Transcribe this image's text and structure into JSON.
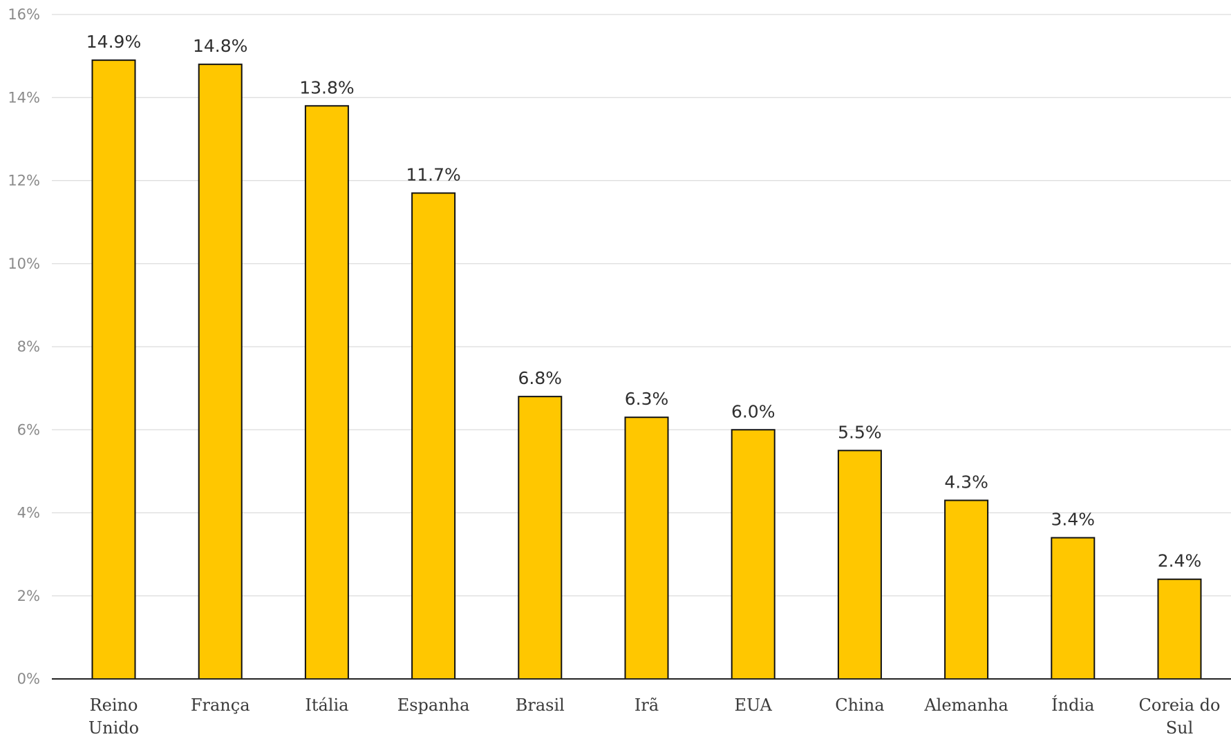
{
  "chart_data": {
    "type": "bar",
    "categories": [
      [
        "Reino",
        "Unido"
      ],
      [
        "França"
      ],
      [
        "Itália"
      ],
      [
        "Espanha"
      ],
      [
        "Brasil"
      ],
      [
        "Irã"
      ],
      [
        "EUA"
      ],
      [
        "China"
      ],
      [
        "Alemanha"
      ],
      [
        "Índia"
      ],
      [
        "Coreia do",
        "Sul"
      ]
    ],
    "values": [
      14.9,
      14.8,
      13.8,
      11.7,
      6.8,
      6.3,
      6.0,
      5.5,
      4.3,
      3.4,
      2.4
    ],
    "data_labels": [
      "14.9%",
      "14.8%",
      "13.8%",
      "11.7%",
      "6.8%",
      "6.3%",
      "6.0%",
      "5.5%",
      "4.3%",
      "3.4%",
      "2.4%"
    ],
    "yticks": [
      0,
      2,
      4,
      6,
      8,
      10,
      12,
      14,
      16
    ],
    "ytick_labels": [
      "0%",
      "2%",
      "4%",
      "6%",
      "8%",
      "10%",
      "12%",
      "14%",
      "16%"
    ],
    "ylim": [
      0,
      16
    ],
    "grid": true,
    "colors": {
      "bar": "#FFC700",
      "bar_outline": "#111111",
      "grid": "#dcdcdc"
    }
  }
}
